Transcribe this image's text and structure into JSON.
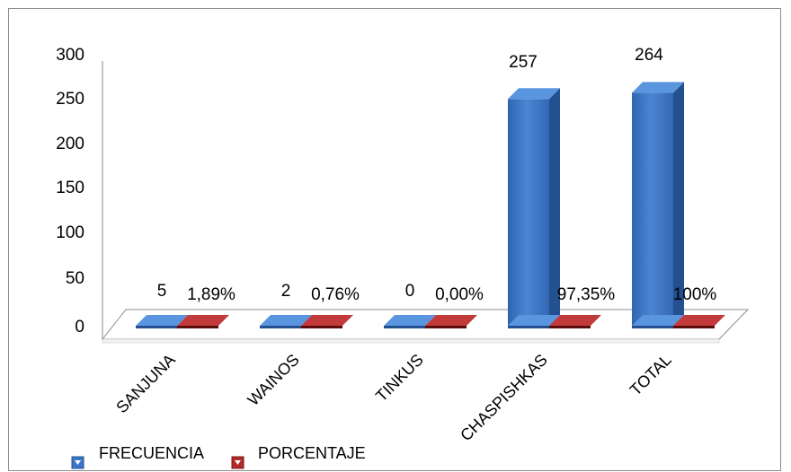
{
  "chart_data": {
    "type": "bar",
    "categories": [
      "SANJUNA",
      "WAINOS",
      "TINKUS",
      "CHASPISHKAS",
      "TOTAL"
    ],
    "series": [
      {
        "name": "FRECUENCIA",
        "values": [
          5,
          2,
          0,
          257,
          264
        ],
        "labels": [
          "5",
          "2",
          "0",
          "257",
          "264"
        ]
      },
      {
        "name": "PORCENTAJE",
        "values": [
          1.89,
          0.76,
          0,
          97.35,
          100
        ],
        "labels": [
          "1,89%",
          "0,76%",
          "0,00%",
          "97,35%",
          "100%"
        ]
      }
    ],
    "yticks": [
      "0",
      "50",
      "100",
      "150",
      "200",
      "250",
      "300"
    ],
    "ylim": [
      0,
      300
    ],
    "legend_position": "bottom-left",
    "colors": {
      "frecuencia": "#3a76c7",
      "porcentaje": "#9b1f1f"
    },
    "style": "3d-columns"
  }
}
